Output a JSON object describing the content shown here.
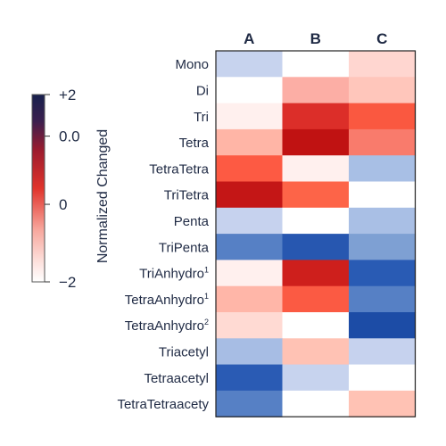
{
  "chart_data": {
    "type": "heatmap",
    "columns": [
      "A",
      "B",
      "C"
    ],
    "rows": [
      {
        "label": "Mono",
        "sup": ""
      },
      {
        "label": "Di",
        "sup": ""
      },
      {
        "label": "Tri",
        "sup": ""
      },
      {
        "label": "Tetra",
        "sup": ""
      },
      {
        "label": "TetraTetra",
        "sup": ""
      },
      {
        "label": "TriTetra",
        "sup": ""
      },
      {
        "label": "Penta",
        "sup": ""
      },
      {
        "label": "TriPenta",
        "sup": ""
      },
      {
        "label": "TriAnhydro",
        "sup": "1"
      },
      {
        "label": "TetraAnhydro",
        "sup": "1"
      },
      {
        "label": "TetraAnhydro",
        "sup": "2"
      },
      {
        "label": "Triacetyl",
        "sup": ""
      },
      {
        "label": "Tetraacetyl",
        "sup": ""
      },
      {
        "label": "TetraTetraacety",
        "sup": ""
      }
    ],
    "cell_colors": [
      [
        "#c7d3ee",
        "#ffffff",
        "#ffd6d0"
      ],
      [
        "#ffffff",
        "#fcaea5",
        "#ffc6bb"
      ],
      [
        "#fff0ee",
        "#dc2e29",
        "#fa5840"
      ],
      [
        "#ffb5a6",
        "#c01212",
        "#f97b6c"
      ],
      [
        "#fd5a43",
        "#fff0ee",
        "#a8bfe5"
      ],
      [
        "#c41616",
        "#fd6448",
        "#ffffff"
      ],
      [
        "#c6d2ee",
        "#ffffff",
        "#a9bfe5"
      ],
      [
        "#5680c5",
        "#2757b0",
        "#7ea0d3"
      ],
      [
        "#fff0ee",
        "#ce1f1c",
        "#295bb4"
      ],
      [
        "#ffb6a8",
        "#fb5a43",
        "#5680c5"
      ],
      [
        "#ffdad3",
        "#ffffff",
        "#1c4ca6"
      ],
      [
        "#a7bde4",
        "#ffc2b4",
        "#c6d2ee"
      ],
      [
        "#2a5bb4",
        "#c7d3ee",
        "#ffffff"
      ],
      [
        "#5680c5",
        "#ffffff",
        "#ffc2b4"
      ]
    ],
    "colorbar": {
      "label": "Normalized Changed",
      "ticks": [
        "+2",
        "0.0",
        "0",
        "−2"
      ],
      "tick_fraction_from_top": [
        0.0,
        0.222,
        0.586,
        1.0
      ],
      "gradient_stops": [
        {
          "offset": 0.0,
          "color": "#17204d"
        },
        {
          "offset": 0.14,
          "color": "#3a1f4f"
        },
        {
          "offset": 0.3,
          "color": "#9d1c2e"
        },
        {
          "offset": 0.5,
          "color": "#e0332b"
        },
        {
          "offset": 0.72,
          "color": "#f7a69c"
        },
        {
          "offset": 0.9,
          "color": "#fde3df"
        },
        {
          "offset": 1.0,
          "color": "#ffffff"
        }
      ]
    }
  }
}
